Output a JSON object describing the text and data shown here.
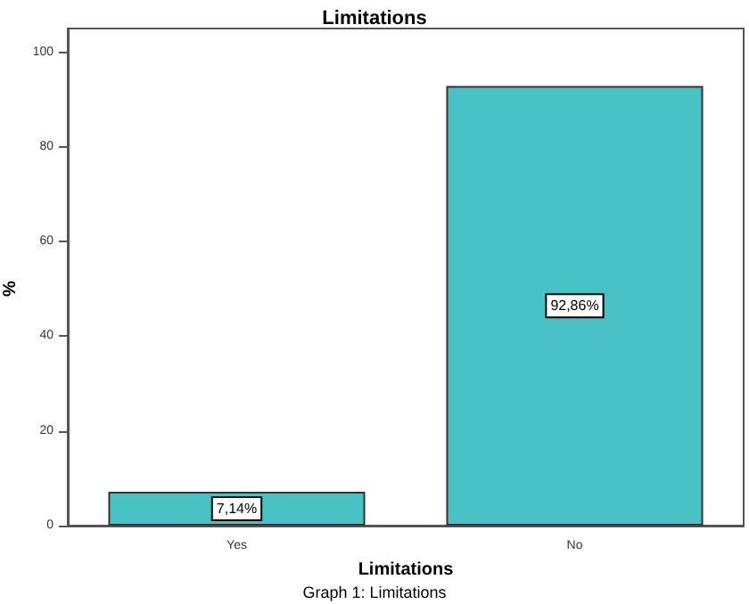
{
  "chart_data": {
    "type": "bar",
    "title": "Limitations",
    "xlabel": "Limitations",
    "ylabel": "%",
    "categories": [
      "Yes",
      "No"
    ],
    "values": [
      7.14,
      92.86
    ],
    "value_labels": [
      "7,14%",
      "92,86%"
    ],
    "color": "#48c2c5",
    "ylim": [
      0,
      105
    ],
    "yticks": [
      0,
      20,
      40,
      60,
      80,
      100
    ],
    "grid": false,
    "annotations": [
      "Graph 1: Limitations"
    ]
  }
}
